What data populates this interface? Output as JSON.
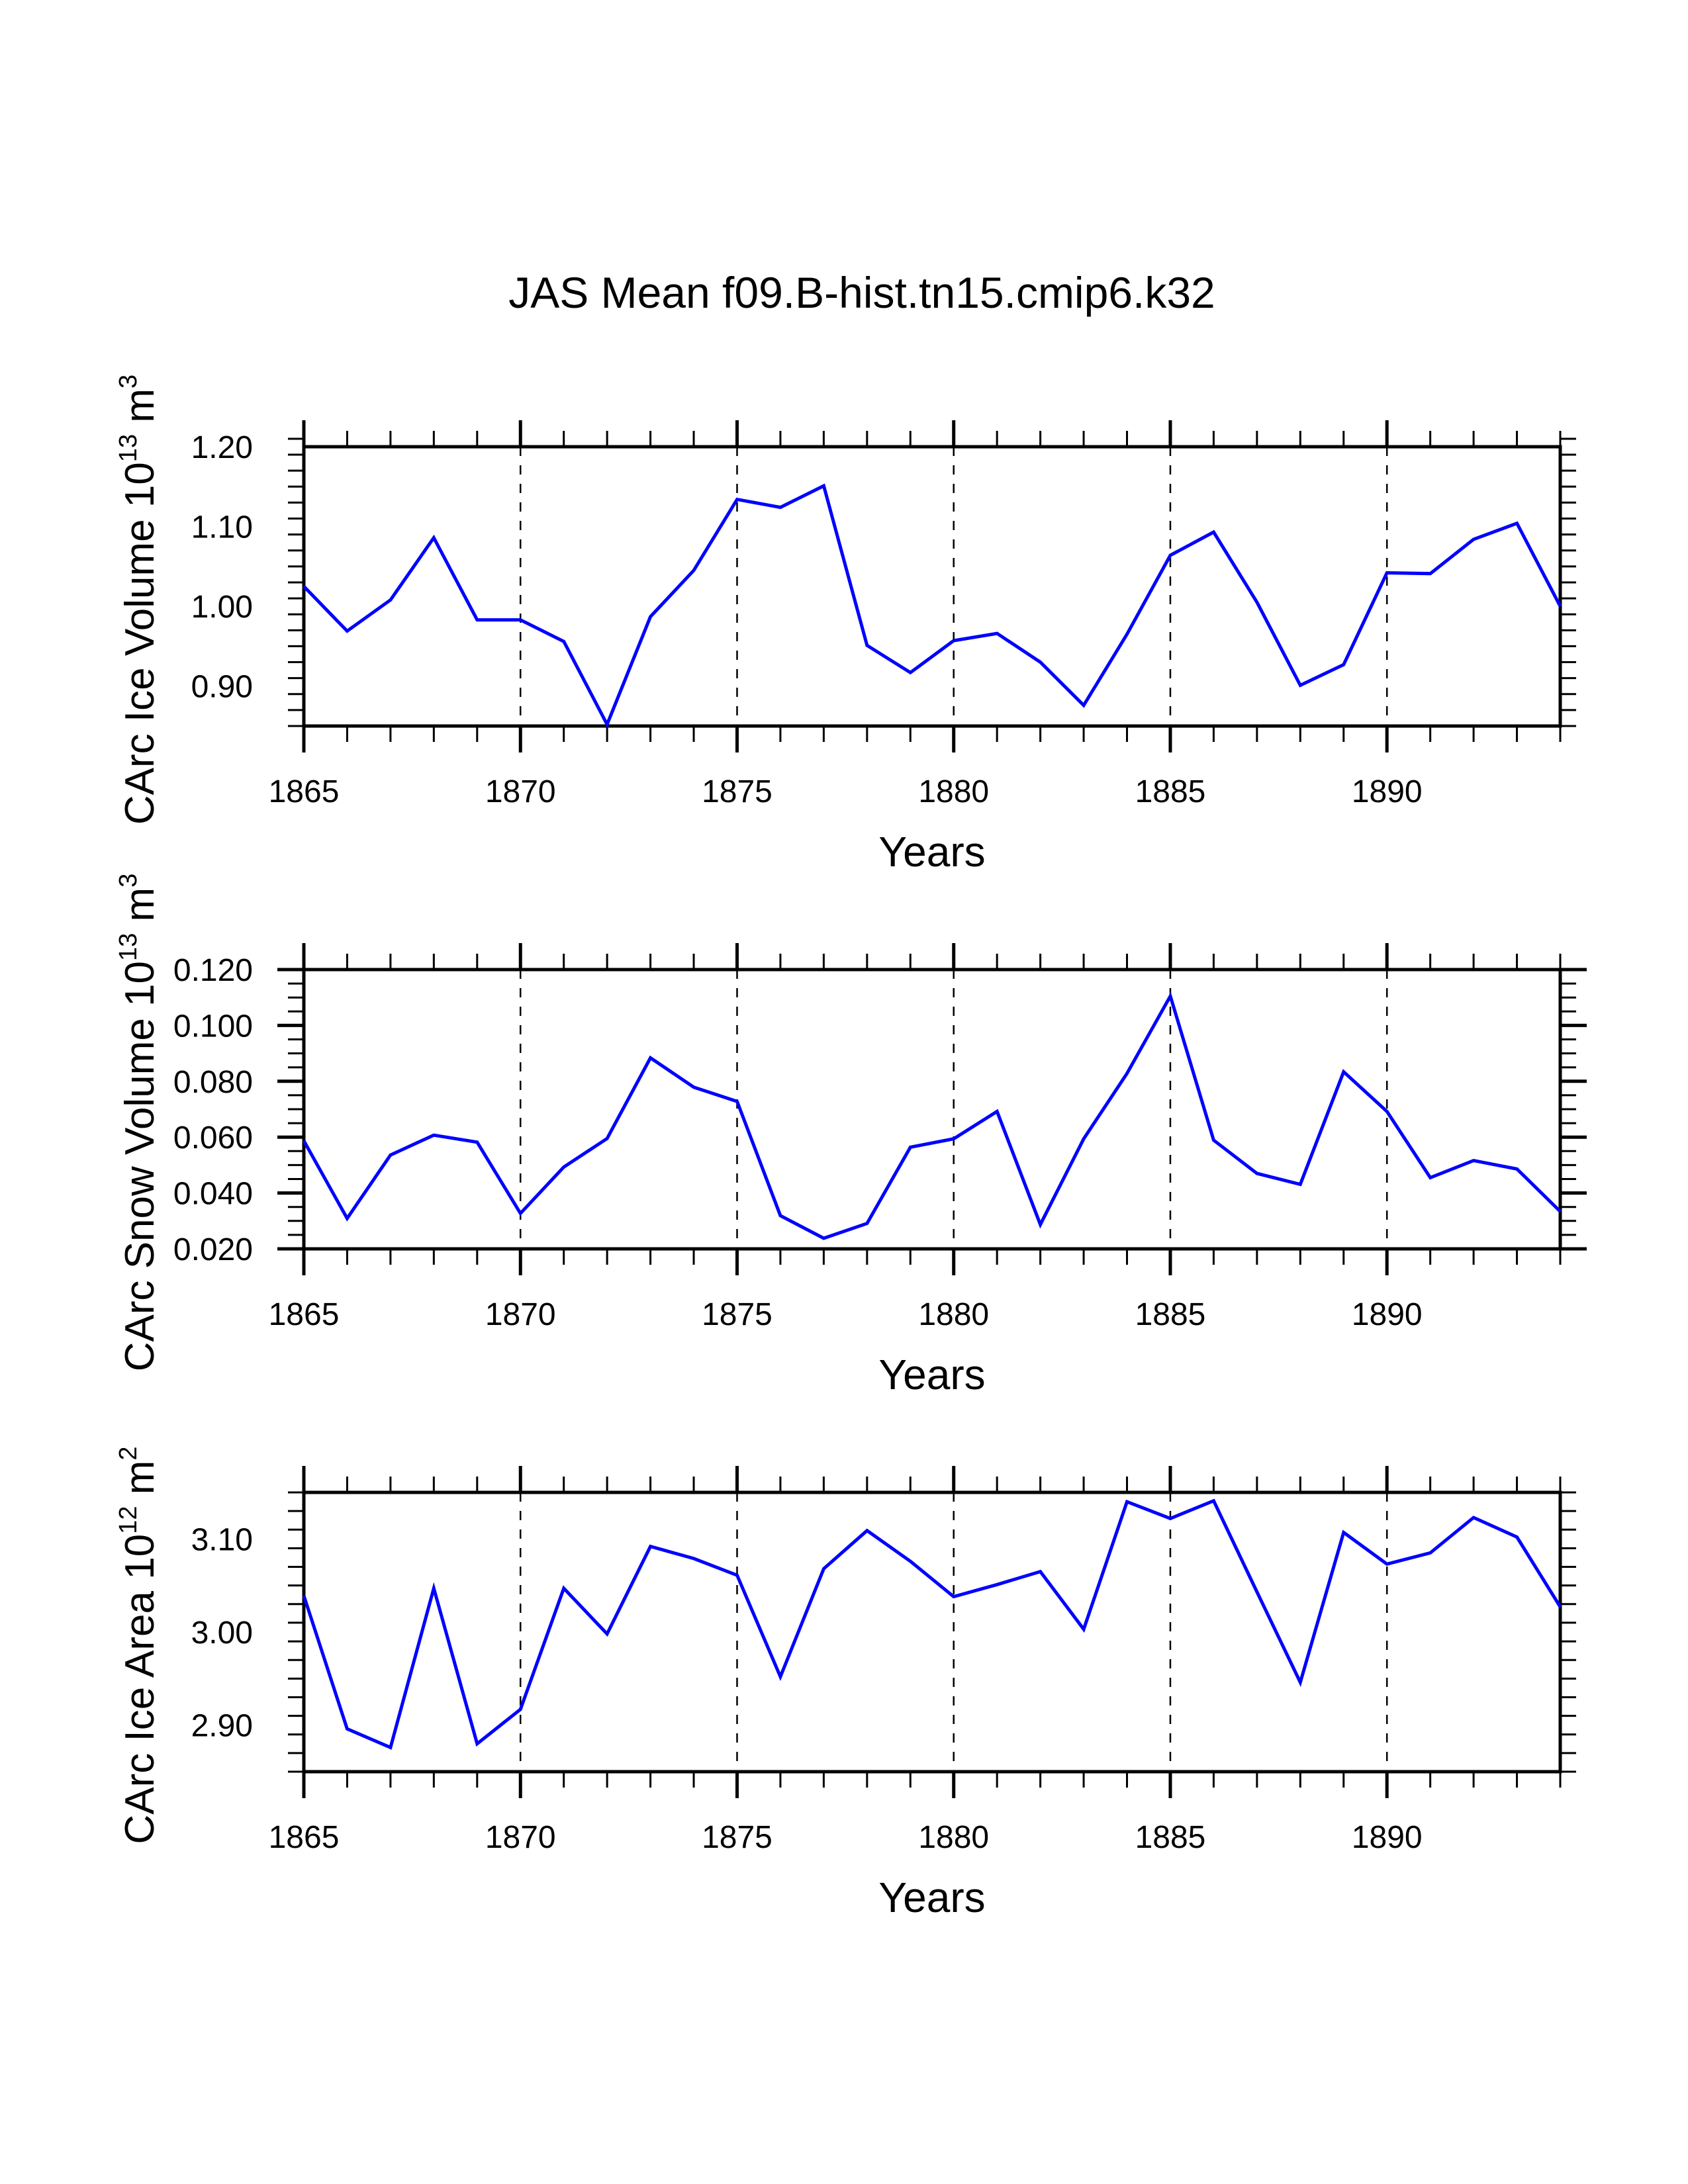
{
  "chart_data": [
    {
      "type": "line",
      "title": "JAS Mean f09.B-hist.tn15.cmip6.k32",
      "xlabel": "Years",
      "ylabel": {
        "prefix": "CArc Ice Volume 10",
        "exponent": "13",
        "unit": " m",
        "unit_exponent": "3"
      },
      "x": [
        1865,
        1866,
        1867,
        1868,
        1869,
        1870,
        1871,
        1872,
        1873,
        1874,
        1875,
        1876,
        1877,
        1878,
        1879,
        1880,
        1881,
        1882,
        1883,
        1884,
        1885,
        1886,
        1887,
        1888,
        1889,
        1890,
        1891,
        1892,
        1893,
        1894
      ],
      "series": [
        {
          "name": "CArc Ice Volume",
          "color": "#0000ff",
          "values": [
            1.025,
            0.969,
            1.008,
            1.086,
            0.983,
            0.983,
            0.956,
            0.852,
            0.987,
            1.045,
            1.134,
            1.124,
            1.151,
            0.951,
            0.917,
            0.957,
            0.966,
            0.93,
            0.876,
            0.965,
            1.064,
            1.093,
            1.005,
            0.901,
            0.927,
            1.042,
            1.041,
            1.084,
            1.104,
            1.0
          ]
        }
      ],
      "xlim": [
        1865,
        1894
      ],
      "ylim": [
        0.85,
        1.2
      ],
      "xticks": [
        1865,
        1870,
        1875,
        1880,
        1885,
        1890
      ],
      "xtick_labels": [
        "1865",
        "1870",
        "1875",
        "1880",
        "1885",
        "1890"
      ],
      "yticks": [
        0.9,
        1.0,
        1.1,
        1.2
      ],
      "ytick_labels": [
        "0.90",
        "1.00",
        "1.10",
        "1.20"
      ],
      "y_minor_step": 0.02,
      "x_minor_step": 1,
      "grid": "dashed vertical lines at major x ticks",
      "legend": "none"
    },
    {
      "type": "line",
      "xlabel": "Years",
      "ylabel": {
        "prefix": "CArc Snow Volume 10",
        "exponent": "13",
        "unit": " m",
        "unit_exponent": "3"
      },
      "x": [
        1865,
        1866,
        1867,
        1868,
        1869,
        1870,
        1871,
        1872,
        1873,
        1874,
        1875,
        1876,
        1877,
        1878,
        1879,
        1880,
        1881,
        1882,
        1883,
        1884,
        1885,
        1886,
        1887,
        1888,
        1889,
        1890,
        1891,
        1892,
        1893,
        1894
      ],
      "series": [
        {
          "name": "CArc Snow Volume",
          "color": "#0000ff",
          "values": [
            0.0587,
            0.0309,
            0.0536,
            0.0607,
            0.0582,
            0.0327,
            0.0493,
            0.0595,
            0.0884,
            0.0779,
            0.0728,
            0.0319,
            0.0238,
            0.0291,
            0.0564,
            0.0594,
            0.0692,
            0.0287,
            0.0594,
            0.0828,
            0.1105,
            0.0589,
            0.047,
            0.0431,
            0.0834,
            0.0692,
            0.0455,
            0.0516,
            0.0486,
            0.0334
          ]
        }
      ],
      "xlim": [
        1865,
        1894
      ],
      "ylim": [
        0.02,
        0.12
      ],
      "xticks": [
        1865,
        1870,
        1875,
        1880,
        1885,
        1890
      ],
      "xtick_labels": [
        "1865",
        "1870",
        "1875",
        "1880",
        "1885",
        "1890"
      ],
      "yticks": [
        0.02,
        0.04,
        0.06,
        0.08,
        0.1,
        0.12
      ],
      "ytick_labels": [
        "0.020",
        "0.040",
        "0.060",
        "0.080",
        "0.100",
        "0.120"
      ],
      "y_minor_step": 0.005,
      "x_minor_step": 1,
      "grid": "dashed vertical lines at major x ticks",
      "legend": "none"
    },
    {
      "type": "line",
      "xlabel": "Years",
      "ylabel": {
        "prefix": "CArc Ice Area 10",
        "exponent": "12",
        "unit": " m",
        "unit_exponent": "2"
      },
      "x": [
        1865,
        1866,
        1867,
        1868,
        1869,
        1870,
        1871,
        1872,
        1873,
        1874,
        1875,
        1876,
        1877,
        1878,
        1879,
        1880,
        1881,
        1882,
        1883,
        1884,
        1885,
        1886,
        1887,
        1888,
        1889,
        1890,
        1891,
        1892,
        1893,
        1894
      ],
      "series": [
        {
          "name": "CArc Ice Area",
          "color": "#0000ff",
          "values": [
            3.039,
            2.896,
            2.876,
            3.047,
            2.88,
            2.917,
            3.047,
            2.998,
            3.092,
            3.079,
            3.061,
            2.952,
            3.068,
            3.109,
            3.076,
            3.038,
            3.051,
            3.065,
            3.003,
            3.14,
            3.122,
            3.141,
            3.043,
            2.946,
            3.107,
            3.073,
            3.085,
            3.123,
            3.102,
            3.027
          ]
        }
      ],
      "xlim": [
        1865,
        1894
      ],
      "ylim": [
        2.85,
        3.15
      ],
      "xticks": [
        1865,
        1870,
        1875,
        1880,
        1885,
        1890
      ],
      "xtick_labels": [
        "1865",
        "1870",
        "1875",
        "1880",
        "1885",
        "1890"
      ],
      "yticks": [
        2.9,
        3.0,
        3.1
      ],
      "ytick_labels": [
        "2.90",
        "3.00",
        "3.10"
      ],
      "y_minor_step": 0.02,
      "x_minor_step": 1,
      "grid": "dashed vertical lines at major x ticks",
      "legend": "none"
    }
  ]
}
